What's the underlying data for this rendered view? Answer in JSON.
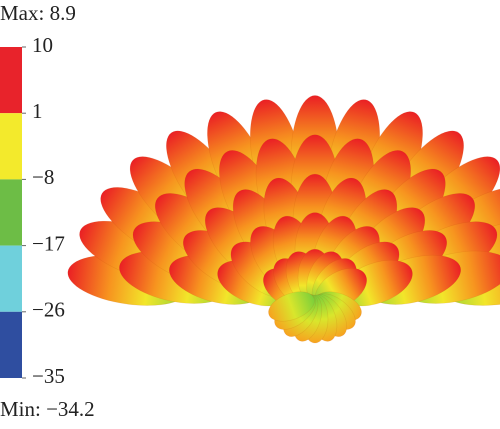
{
  "chart_data": {
    "type": "colorbar",
    "max_label": "Max: 8.9",
    "min_label": "Min: −34.2",
    "ticks": [
      10,
      1,
      {
        "value": -8,
        "label": "−8"
      },
      {
        "value": -17,
        "label": "−17"
      },
      {
        "value": -26,
        "label": "−26"
      },
      {
        "value": -35,
        "label": "−35"
      }
    ],
    "colors": [
      "#e8232b",
      "#f3ea2c",
      "#6dbd46",
      "#6fd0dc",
      "#2f4ea0"
    ]
  }
}
